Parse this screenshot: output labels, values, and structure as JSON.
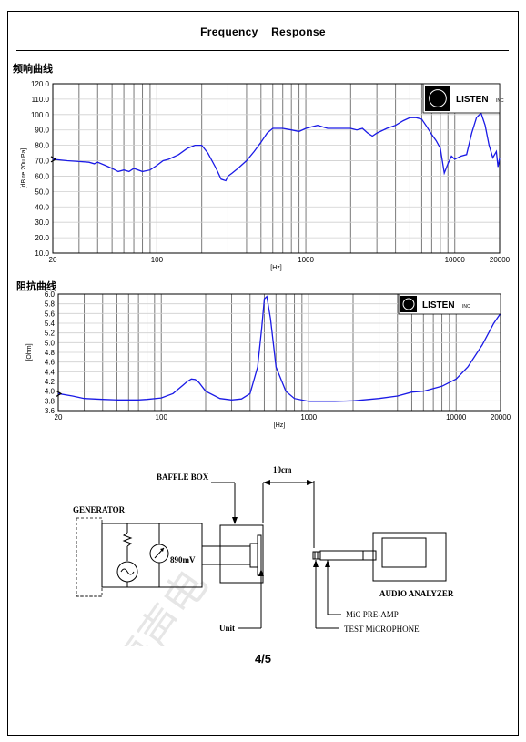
{
  "header": {
    "title": "Frequency    Response",
    "page_number": "4/5"
  },
  "freq_section": {
    "label": "频响曲线"
  },
  "imp_section": {
    "label": "阻抗曲线"
  },
  "logo": {
    "text": "LISTEN",
    "suffix": "INC"
  },
  "chart_data": [
    {
      "type": "line",
      "name": "frequency-response",
      "ylabel": "[dB re 20u Pa]",
      "xlabel": "[Hz]",
      "x_scale": "log",
      "xlim": [
        20,
        20000
      ],
      "ylim": [
        10,
        120
      ],
      "x_tick_labels": [
        {
          "value": 20,
          "label": "20"
        },
        {
          "value": 100,
          "label": "100"
        },
        {
          "value": 1000,
          "label": "1000"
        },
        {
          "value": 10000,
          "label": "10000"
        },
        {
          "value": 20000,
          "label": "20000"
        }
      ],
      "y_tick_labels": [
        "10.0",
        "20.0",
        "30.0",
        "40.0",
        "50.0",
        "60.0",
        "70.0",
        "80.0",
        "90.0",
        "100.0",
        "110.0",
        "120.0"
      ],
      "y_ticks": [
        10,
        20,
        30,
        40,
        50,
        60,
        70,
        80,
        90,
        100,
        110,
        120
      ],
      "grid": true,
      "x": [
        20,
        25,
        30,
        35,
        38,
        40,
        45,
        50,
        55,
        60,
        65,
        70,
        80,
        90,
        100,
        110,
        120,
        140,
        160,
        180,
        200,
        220,
        250,
        270,
        290,
        300,
        320,
        350,
        400,
        450,
        500,
        550,
        600,
        700,
        800,
        900,
        1000,
        1100,
        1200,
        1400,
        1600,
        1800,
        2000,
        2200,
        2400,
        2600,
        2800,
        3000,
        3500,
        4000,
        4500,
        5000,
        5500,
        6000,
        6500,
        7000,
        7500,
        8000,
        8500,
        9000,
        9500,
        10000,
        11000,
        12000,
        13000,
        14000,
        15000,
        16000,
        17000,
        18000,
        19000,
        19500,
        20000
      ],
      "y": [
        71,
        70,
        69.5,
        69,
        68,
        69,
        67,
        65,
        63,
        64,
        63,
        65,
        63,
        64,
        67,
        70,
        71,
        74,
        78,
        80,
        80,
        75,
        65,
        58,
        57,
        60,
        62,
        65,
        70,
        76,
        82,
        88,
        91,
        91,
        90,
        89,
        91,
        92,
        93,
        91,
        91,
        91,
        91,
        90,
        91,
        88,
        86,
        88,
        91,
        93,
        96,
        98,
        98,
        97,
        92,
        87,
        83,
        78,
        62,
        68,
        73,
        71,
        73,
        74,
        88,
        98,
        101,
        93,
        80,
        72,
        76,
        66,
        72
      ]
    },
    {
      "type": "line",
      "name": "impedance",
      "ylabel": "[Ohm]",
      "xlabel": "[Hz]",
      "x_scale": "log",
      "xlim": [
        20,
        20000
      ],
      "ylim": [
        3.6,
        6.0
      ],
      "x_tick_labels": [
        {
          "value": 20,
          "label": "20"
        },
        {
          "value": 100,
          "label": "100"
        },
        {
          "value": 1000,
          "label": "1000"
        },
        {
          "value": 10000,
          "label": "10000"
        },
        {
          "value": 20000,
          "label": "20000"
        }
      ],
      "y_tick_labels": [
        "3.6",
        "3.8",
        "4.0",
        "4.2",
        "4.4",
        "4.6",
        "4.8",
        "5.0",
        "5.2",
        "5.4",
        "5.6",
        "5.8",
        "6.0"
      ],
      "y_ticks": [
        3.6,
        3.8,
        4.0,
        4.2,
        4.4,
        4.6,
        4.8,
        5.0,
        5.2,
        5.4,
        5.6,
        5.8,
        6.0
      ],
      "grid": true,
      "x": [
        20,
        25,
        30,
        40,
        50,
        60,
        70,
        80,
        100,
        120,
        140,
        150,
        160,
        170,
        180,
        200,
        250,
        300,
        350,
        400,
        450,
        480,
        500,
        520,
        550,
        580,
        600,
        700,
        800,
        1000,
        1500,
        2000,
        3000,
        4000,
        5000,
        6000,
        8000,
        10000,
        12000,
        15000,
        18000,
        20000
      ],
      "y": [
        3.95,
        3.9,
        3.85,
        3.83,
        3.82,
        3.82,
        3.82,
        3.83,
        3.86,
        3.95,
        4.12,
        4.2,
        4.25,
        4.24,
        4.18,
        4.0,
        3.85,
        3.82,
        3.84,
        3.95,
        4.5,
        5.3,
        5.9,
        5.95,
        5.5,
        4.9,
        4.5,
        4.0,
        3.85,
        3.79,
        3.79,
        3.8,
        3.85,
        3.9,
        3.98,
        4.0,
        4.1,
        4.25,
        4.5,
        4.95,
        5.4,
        5.6
      ]
    }
  ],
  "diagram": {
    "generator": "GENERATOR",
    "voltage": "890mV",
    "baffle": "BAFFLE BOX",
    "distance": "10cm",
    "analyzer": "AUDIO ANALYZER",
    "preamp": "MiC PRE-AMP",
    "mic": "TEST MiCROPHONE",
    "unit": "Unit"
  },
  "watermark": {
    "text": "惠州福声电"
  }
}
